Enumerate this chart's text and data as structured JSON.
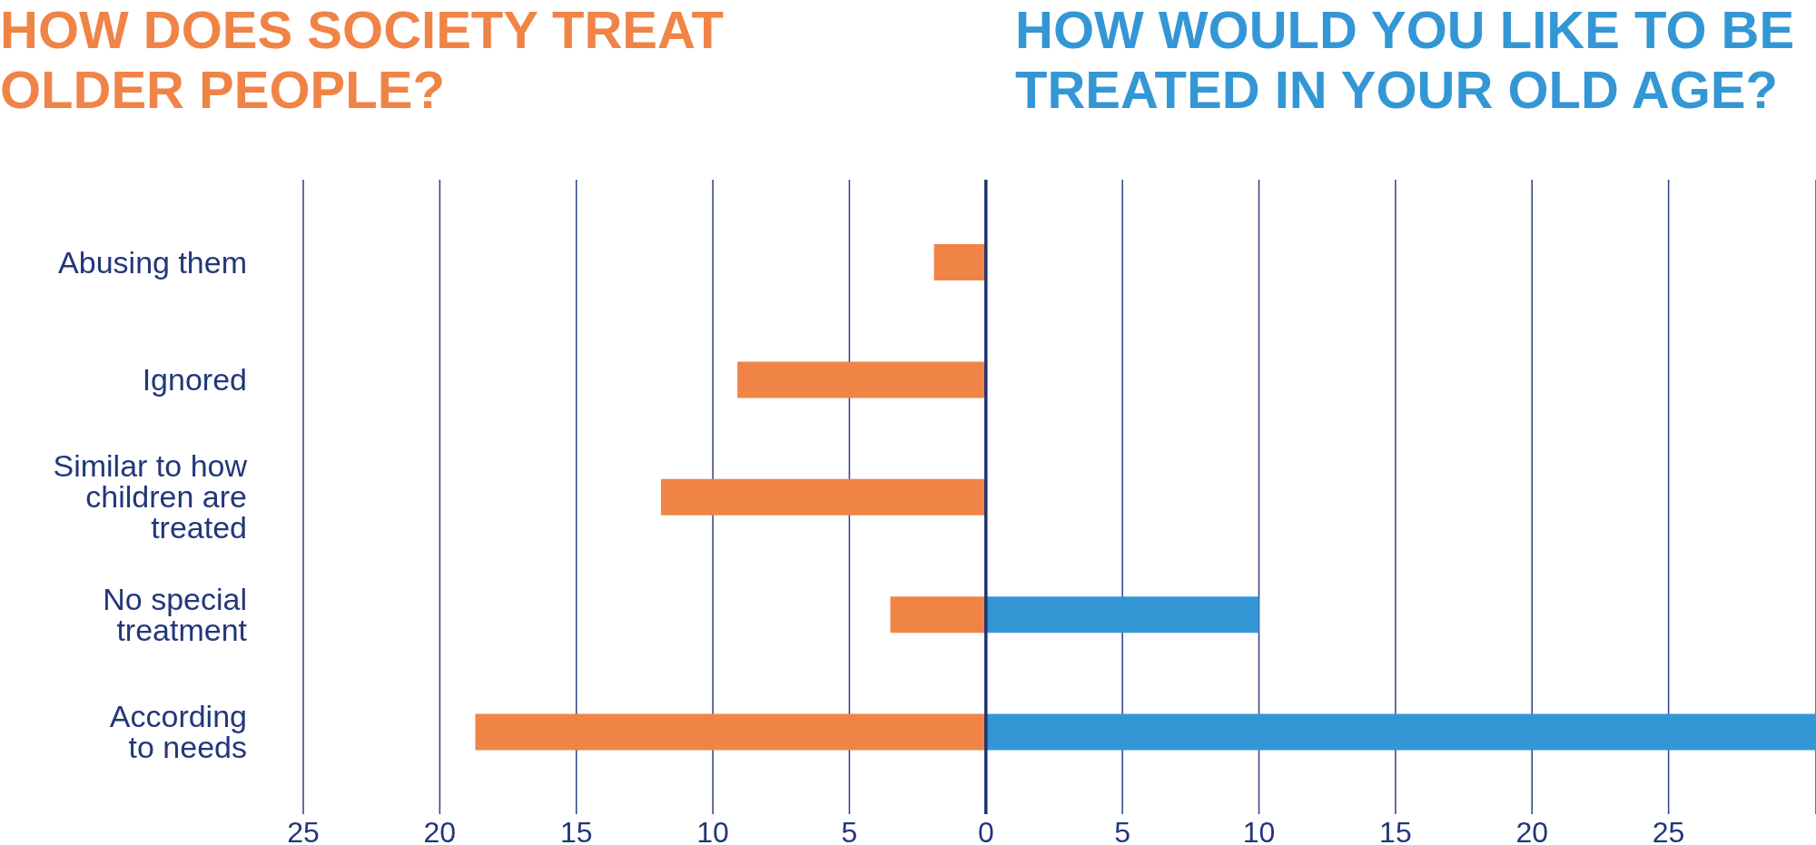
{
  "chart_data": {
    "type": "bar",
    "orientation": "horizontal",
    "categories": [
      "Abusing them",
      "Ignored",
      "Similar to how\nchildren are\ntreated",
      "No special\ntreatment",
      "According\nto needs"
    ],
    "series": [
      {
        "name": "HOW DOES SOCIETY TREAT OLDER PEOPLE?",
        "color": "#f08447",
        "values": [
          -1.9,
          -9.1,
          -11.9,
          -3.5,
          -18.7
        ]
      },
      {
        "name": "HOW WOULD YOU LIKE TO BE TREATED IN YOUR OLD AGE?",
        "color": "#3497d5",
        "values": [
          null,
          null,
          null,
          10,
          30.4
        ]
      }
    ],
    "xlim": [
      -25,
      30.4
    ],
    "xticks": [
      {
        "value": -25,
        "label": "25"
      },
      {
        "value": -20,
        "label": "20"
      },
      {
        "value": -15,
        "label": "15"
      },
      {
        "value": -10,
        "label": "10"
      },
      {
        "value": -5,
        "label": "5"
      },
      0,
      5,
      10,
      15,
      20,
      25
    ],
    "grid": "x",
    "legend": "top",
    "ref_lines": [
      {
        "axis": "x",
        "value": 0,
        "color": "#1f3372"
      }
    ]
  }
}
